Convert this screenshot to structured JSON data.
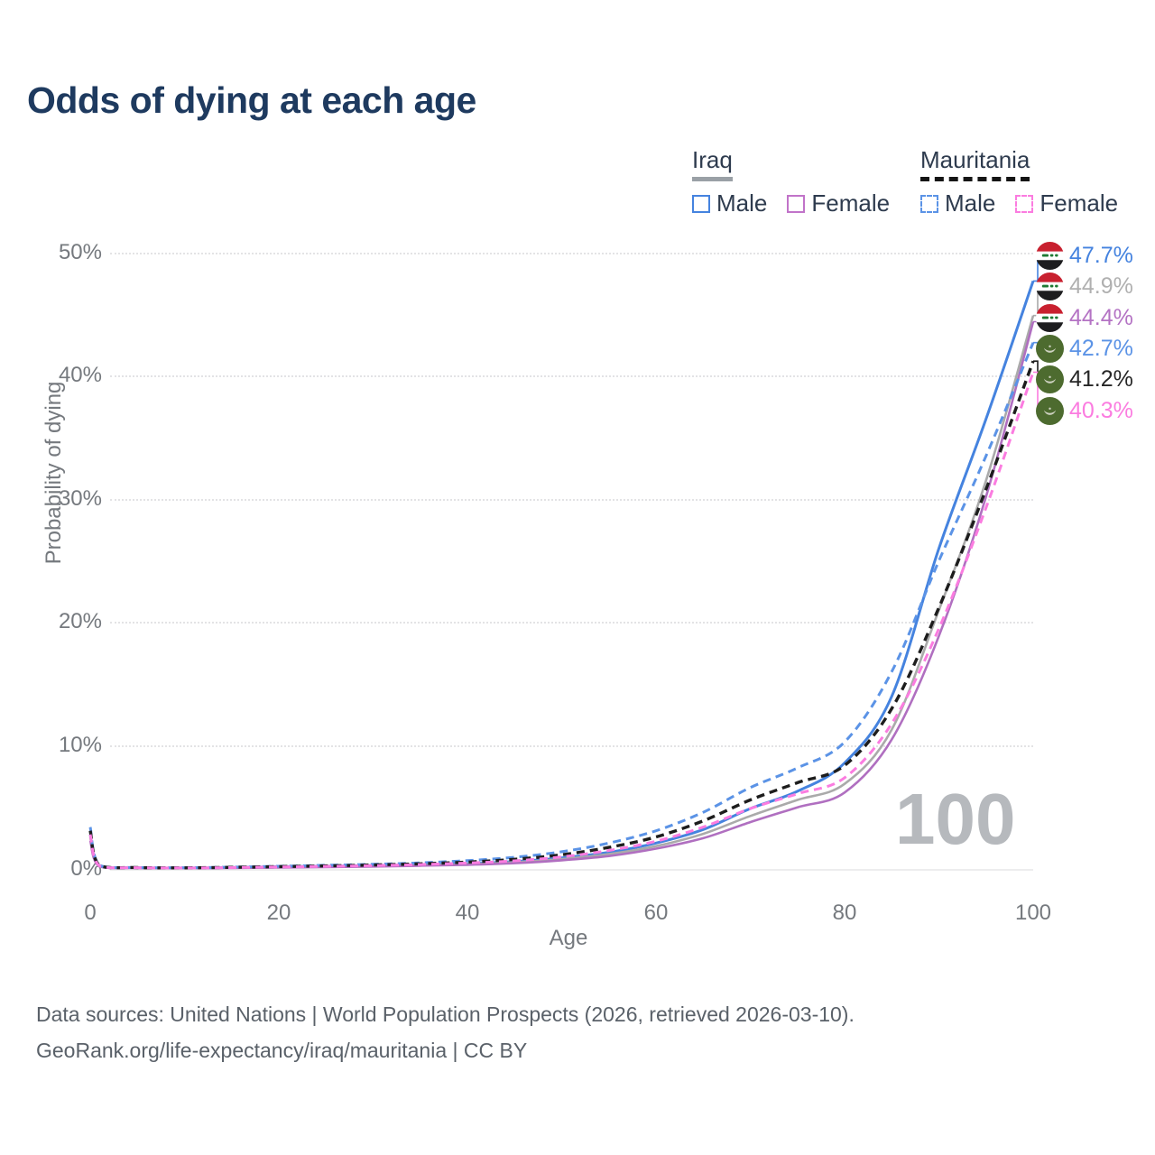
{
  "title": "Odds of dying at each age",
  "legend": {
    "groups": [
      {
        "label": "Iraq",
        "style": "solid",
        "items": [
          {
            "label": "Male",
            "color": "#4583df"
          },
          {
            "label": "Female",
            "color": "#c173c9"
          }
        ]
      },
      {
        "label": "Mauritania",
        "style": "dashed",
        "items": [
          {
            "label": "Male",
            "color": "#5b93e6"
          },
          {
            "label": "Female",
            "color": "#fb7ce0"
          }
        ]
      }
    ]
  },
  "axes": {
    "y_title": "Probability of dying",
    "x_title": "Age",
    "y_ticks": [
      "50%",
      "40%",
      "30%",
      "20%",
      "10%",
      "0%"
    ],
    "x_ticks": [
      "0",
      "20",
      "40",
      "60",
      "80",
      "100"
    ]
  },
  "watermark": "100",
  "end_labels": [
    {
      "text": "47.7%",
      "color": "#4583df",
      "flag": "iraq"
    },
    {
      "text": "44.9%",
      "color": "#b0b0b0",
      "flag": "iraq"
    },
    {
      "text": "44.4%",
      "color": "#b473c4",
      "flag": "iraq"
    },
    {
      "text": "42.7%",
      "color": "#5b93e6",
      "flag": "mauritania"
    },
    {
      "text": "41.2%",
      "color": "#262626",
      "flag": "mauritania"
    },
    {
      "text": "40.3%",
      "color": "#fb7ce0",
      "flag": "mauritania"
    }
  ],
  "footer": {
    "line1": "Data sources: United Nations | World Population Prospects (2026, retrieved 2026-03-10).",
    "line2": "GeoRank.org/life-expectancy/iraq/mauritania | CC BY"
  },
  "chart_data": {
    "type": "line",
    "xlabel": "Age",
    "ylabel": "Probability of dying",
    "xlim": [
      0,
      100
    ],
    "ylim_pct": [
      0,
      50
    ],
    "grid": "horizontal-dotted",
    "legend_position": "top-right",
    "x": [
      0,
      1,
      5,
      10,
      15,
      20,
      25,
      30,
      35,
      40,
      45,
      50,
      55,
      60,
      65,
      70,
      75,
      80,
      85,
      90,
      95,
      100
    ],
    "series": [
      {
        "name": "Iraq Male",
        "color": "#4583df",
        "dash": false,
        "end_value": 47.7,
        "values": [
          2.8,
          0.25,
          0.1,
          0.08,
          0.12,
          0.18,
          0.22,
          0.27,
          0.33,
          0.43,
          0.6,
          0.9,
          1.35,
          2.1,
          3.2,
          4.9,
          6.3,
          8.6,
          14.0,
          26.0,
          36.5,
          47.7
        ]
      },
      {
        "name": "Iraq Total",
        "color": "#aaaaaa",
        "dash": false,
        "end_value": 44.9,
        "values": [
          2.6,
          0.22,
          0.09,
          0.07,
          0.1,
          0.15,
          0.19,
          0.24,
          0.3,
          0.39,
          0.54,
          0.8,
          1.2,
          1.85,
          2.85,
          4.3,
          5.6,
          6.9,
          11.3,
          21.0,
          31.5,
          44.9
        ]
      },
      {
        "name": "Iraq Female",
        "color": "#b06fc0",
        "dash": false,
        "end_value": 44.4,
        "values": [
          2.3,
          0.2,
          0.08,
          0.06,
          0.08,
          0.12,
          0.15,
          0.2,
          0.26,
          0.34,
          0.47,
          0.7,
          1.05,
          1.65,
          2.5,
          3.8,
          5.0,
          6.2,
          10.5,
          18.9,
          30.2,
          44.4
        ]
      },
      {
        "name": "Mauritania Male",
        "color": "#5b93e6",
        "dash": true,
        "end_value": 42.7,
        "values": [
          3.4,
          0.3,
          0.12,
          0.1,
          0.15,
          0.22,
          0.3,
          0.38,
          0.5,
          0.68,
          0.95,
          1.4,
          2.1,
          3.1,
          4.6,
          6.6,
          8.2,
          10.3,
          16.0,
          25.0,
          33.5,
          42.7
        ]
      },
      {
        "name": "Mauritania Total",
        "color": "#1d1d1d",
        "dash": true,
        "end_value": 41.2,
        "values": [
          3.1,
          0.27,
          0.11,
          0.09,
          0.13,
          0.19,
          0.25,
          0.32,
          0.42,
          0.56,
          0.78,
          1.15,
          1.75,
          2.6,
          3.9,
          5.6,
          7.0,
          8.4,
          13.0,
          21.2,
          30.8,
          41.2
        ]
      },
      {
        "name": "Mauritania Female",
        "color": "#fb7ce0",
        "dash": true,
        "end_value": 40.3,
        "values": [
          2.8,
          0.24,
          0.1,
          0.08,
          0.11,
          0.16,
          0.21,
          0.27,
          0.36,
          0.48,
          0.66,
          0.98,
          1.5,
          2.25,
          3.4,
          4.9,
          6.1,
          7.4,
          11.8,
          19.5,
          29.3,
          40.3
        ]
      }
    ]
  }
}
